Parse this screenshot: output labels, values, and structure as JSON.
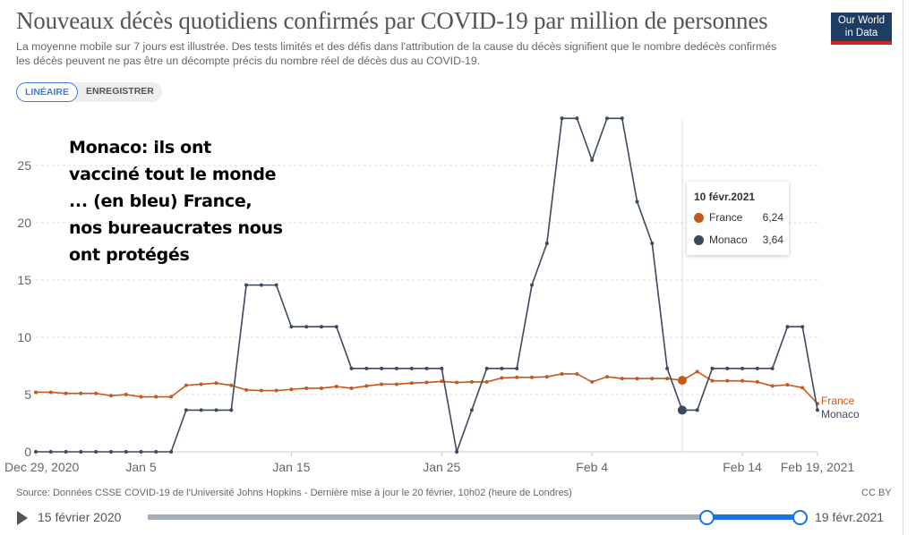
{
  "header": {
    "title": "Nouveaux décès quotidiens confirmés par COVID-19 par million de personnes",
    "subtitle_line1": "La moyenne mobile sur 7 jours est illustrée. Des tests limités et des défis dans l'attribution de la cause du décès signifient que le nombre dedécès confirmés",
    "subtitle_line2": "les décès peuvent ne pas être un décompte précis du nombre réel de décès dus au COVID-19.",
    "logo_line1": "Our World",
    "logo_line2": "in Data"
  },
  "scale_toggle": {
    "linear": "LINÉAIRE",
    "log": "ENREGISTRER"
  },
  "annotation": "Monaco: ils ont vacciné tout le monde ... (en bleu) France, nos bureaucrates nous ont protégés",
  "tooltip": {
    "date": "10 févr.2021",
    "rows": [
      {
        "label": "France",
        "value": "6,24"
      },
      {
        "label": "Monaco",
        "value": "3,64"
      }
    ]
  },
  "footer": {
    "source": "Source: Données CSSE COVID-19 de l'Université Johns Hopkins - Dernière mise à jour le 20 février, 10h02 (heure de Londres)",
    "license": "CC BY"
  },
  "timeline": {
    "start_label": "15 février 2020",
    "end_label": "19 févr.2021"
  },
  "colors": {
    "France": "#c15a1c",
    "Monaco": "#3c4a5e",
    "accent": "#1a73e0"
  },
  "chart_data": {
    "type": "line",
    "title": "Nouveaux décès quotidiens confirmés par COVID-19 par million de personnes",
    "x_start": "2020-12-29",
    "x_days": 53,
    "xlim_days": [
      0,
      52
    ],
    "x_ticks": [
      {
        "day": 0,
        "label": "Dec 29, 2020"
      },
      {
        "day": 7,
        "label": "Jan 5"
      },
      {
        "day": 17,
        "label": "Jan 15"
      },
      {
        "day": 27,
        "label": "Jan 25"
      },
      {
        "day": 37,
        "label": "Feb 4"
      },
      {
        "day": 47,
        "label": "Feb 14"
      },
      {
        "day": 52,
        "label": "Feb 19, 2021"
      }
    ],
    "y_ticks": [
      0,
      5,
      10,
      15,
      20,
      25
    ],
    "ylim": [
      0,
      29.5
    ],
    "grid": true,
    "hover_day": 43,
    "series": [
      {
        "name": "France",
        "values": [
          5.2,
          5.2,
          5.1,
          5.1,
          5.1,
          4.9,
          5.0,
          4.8,
          4.8,
          4.8,
          5.8,
          5.9,
          6.0,
          5.8,
          5.4,
          5.35,
          5.35,
          5.45,
          5.55,
          5.55,
          5.7,
          5.55,
          5.75,
          5.9,
          5.9,
          6.0,
          6.05,
          6.15,
          6.05,
          6.1,
          6.1,
          6.45,
          6.5,
          6.5,
          6.55,
          6.8,
          6.8,
          6.1,
          6.55,
          6.4,
          6.4,
          6.4,
          6.4,
          6.24,
          7.0,
          6.2,
          6.2,
          6.2,
          6.1,
          5.75,
          5.85,
          5.6,
          4.2
        ]
      },
      {
        "name": "Monaco",
        "values": [
          0,
          0,
          0,
          0,
          0,
          0,
          0,
          0,
          0,
          0,
          3.64,
          3.64,
          3.64,
          3.64,
          14.56,
          14.56,
          14.56,
          10.92,
          10.92,
          10.92,
          10.92,
          7.28,
          7.28,
          7.28,
          7.28,
          7.28,
          7.28,
          7.28,
          0,
          3.64,
          7.28,
          7.28,
          7.28,
          14.56,
          18.2,
          29.12,
          29.12,
          25.48,
          29.12,
          29.12,
          21.84,
          18.2,
          7.28,
          3.64,
          3.64,
          7.28,
          7.28,
          7.28,
          7.28,
          7.28,
          10.92,
          10.92,
          3.64
        ]
      }
    ]
  }
}
